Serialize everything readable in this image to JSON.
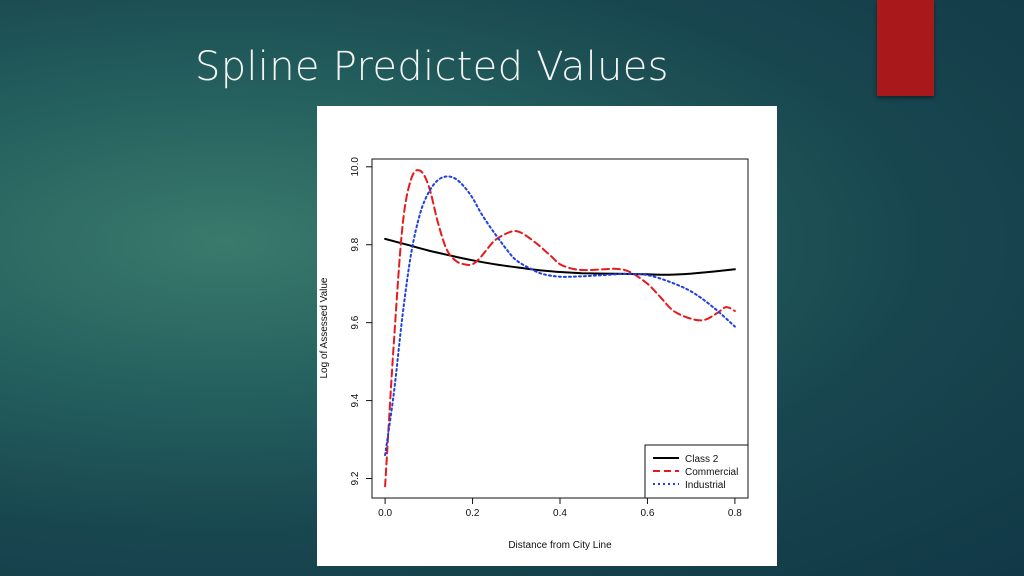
{
  "slide": {
    "title": "Spline Predicted Values"
  },
  "chart_data": {
    "type": "line",
    "xlabel": "Distance from City Line",
    "ylabel": "Log of Assessed Value",
    "xlim": [
      -0.03,
      0.83
    ],
    "ylim": [
      9.15,
      10.02
    ],
    "xticks": [
      "0.0",
      "0.2",
      "0.4",
      "0.6",
      "0.8"
    ],
    "yticks": [
      "9.2",
      "9.4",
      "9.6",
      "9.8",
      "10.0"
    ],
    "legend_position": "bottom-right",
    "series": [
      {
        "name": "Class 2",
        "color": "#000000",
        "style": "solid",
        "x": [
          0.0,
          0.05,
          0.1,
          0.15,
          0.2,
          0.25,
          0.3,
          0.35,
          0.4,
          0.45,
          0.5,
          0.55,
          0.6,
          0.65,
          0.7,
          0.75,
          0.8
        ],
        "y": [
          9.815,
          9.8,
          9.785,
          9.772,
          9.76,
          9.75,
          9.742,
          9.735,
          9.73,
          9.727,
          9.726,
          9.725,
          9.724,
          9.723,
          9.726,
          9.731,
          9.737
        ]
      },
      {
        "name": "Commercial",
        "color": "#e41a1c",
        "style": "dashed",
        "x": [
          0.0,
          0.02,
          0.04,
          0.06,
          0.08,
          0.1,
          0.12,
          0.14,
          0.16,
          0.18,
          0.2,
          0.22,
          0.25,
          0.28,
          0.3,
          0.32,
          0.35,
          0.38,
          0.4,
          0.43,
          0.46,
          0.5,
          0.53,
          0.56,
          0.6,
          0.63,
          0.66,
          0.7,
          0.73,
          0.76,
          0.78,
          0.8
        ],
        "y": [
          9.18,
          9.55,
          9.85,
          9.97,
          9.99,
          9.95,
          9.86,
          9.79,
          9.76,
          9.75,
          9.75,
          9.77,
          9.81,
          9.83,
          9.835,
          9.825,
          9.8,
          9.77,
          9.75,
          9.738,
          9.735,
          9.737,
          9.738,
          9.73,
          9.7,
          9.665,
          9.63,
          9.61,
          9.607,
          9.625,
          9.64,
          9.63
        ]
      },
      {
        "name": "Industrial",
        "color": "#1f3fe0",
        "style": "dotted",
        "x": [
          0.0,
          0.02,
          0.04,
          0.06,
          0.08,
          0.1,
          0.12,
          0.14,
          0.16,
          0.18,
          0.2,
          0.22,
          0.25,
          0.28,
          0.3,
          0.33,
          0.36,
          0.4,
          0.45,
          0.5,
          0.55,
          0.6,
          0.65,
          0.7,
          0.75,
          0.8
        ],
        "y": [
          9.26,
          9.42,
          9.62,
          9.78,
          9.88,
          9.935,
          9.965,
          9.975,
          9.97,
          9.95,
          9.92,
          9.88,
          9.83,
          9.785,
          9.76,
          9.74,
          9.725,
          9.718,
          9.719,
          9.722,
          9.725,
          9.722,
          9.705,
          9.68,
          9.64,
          9.59
        ]
      }
    ]
  }
}
